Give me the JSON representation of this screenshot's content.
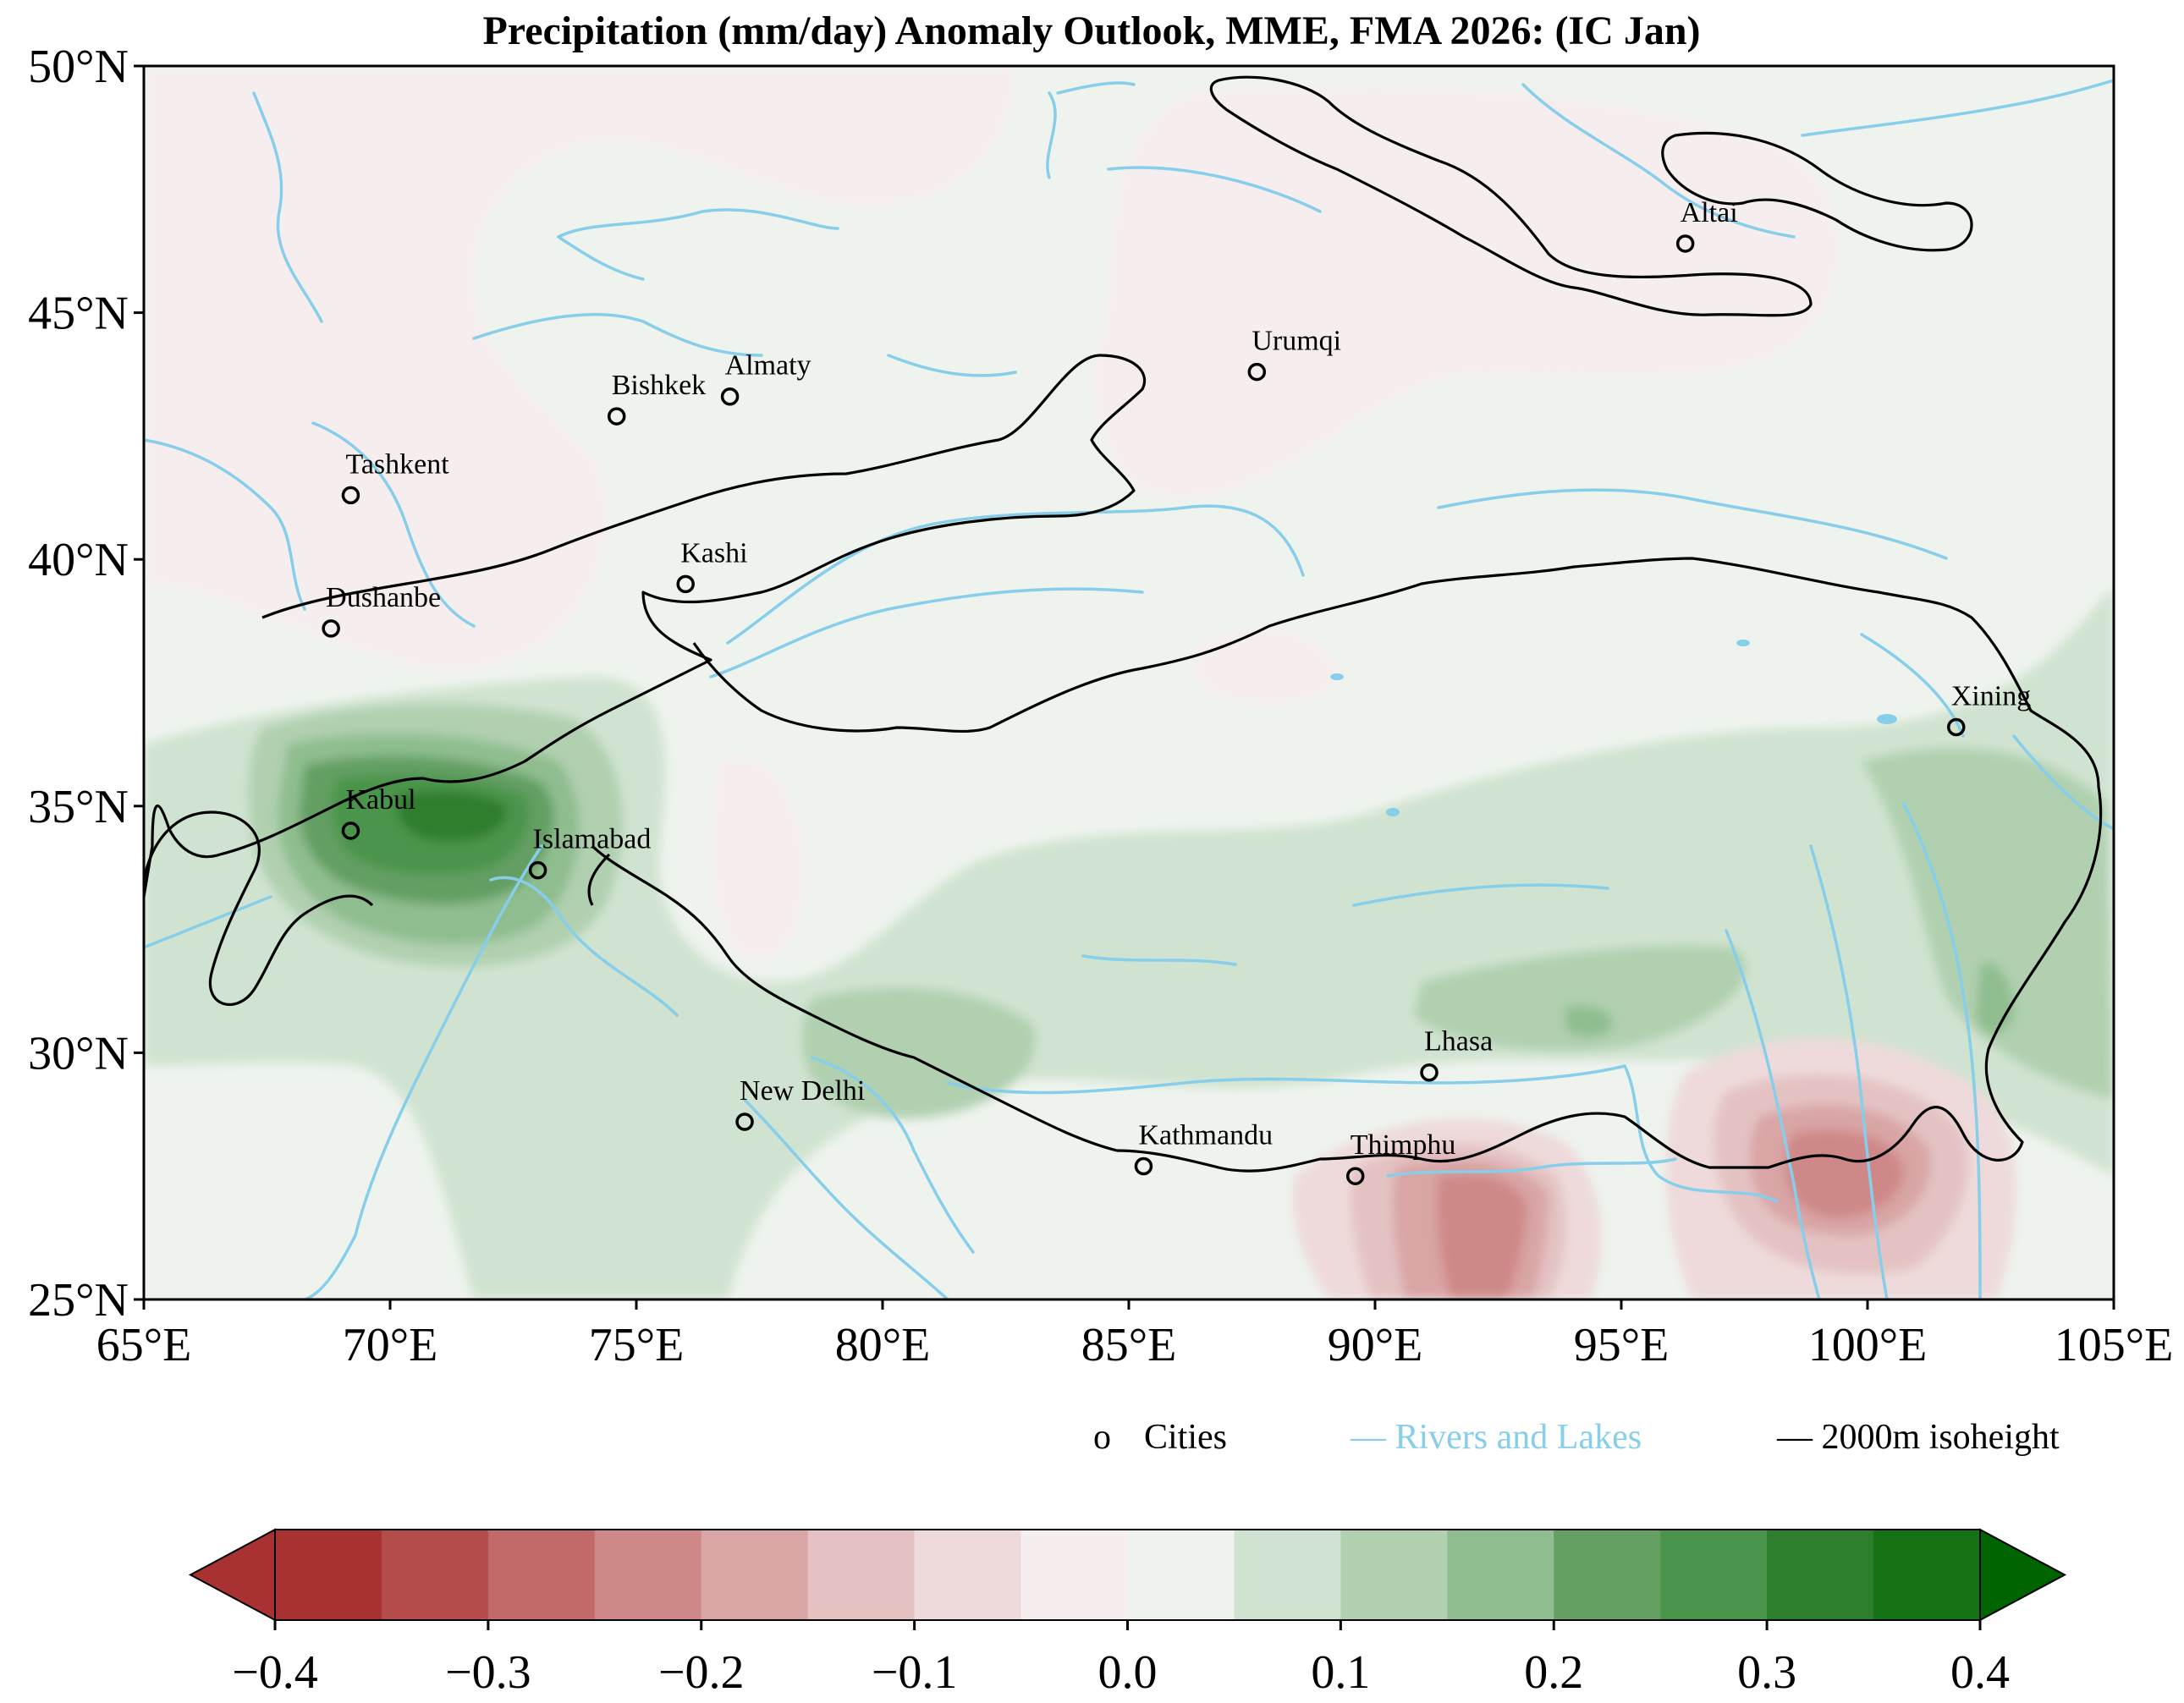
{
  "title": "Precipitation (mm/day) Anomaly Outlook, MME, FMA  2026:  (IC Jan)",
  "map": {
    "lon_range": [
      65,
      105
    ],
    "lat_range": [
      25,
      50
    ],
    "x_ticks": [
      {
        "lon": 65,
        "label": "65°E"
      },
      {
        "lon": 70,
        "label": "70°E"
      },
      {
        "lon": 75,
        "label": "75°E"
      },
      {
        "lon": 80,
        "label": "80°E"
      },
      {
        "lon": 85,
        "label": "85°E"
      },
      {
        "lon": 90,
        "label": "90°E"
      },
      {
        "lon": 95,
        "label": "95°E"
      },
      {
        "lon": 100,
        "label": "100°E"
      },
      {
        "lon": 105,
        "label": "105°E"
      }
    ],
    "y_ticks": [
      {
        "lat": 25,
        "label": "25°N"
      },
      {
        "lat": 30,
        "label": "30°N"
      },
      {
        "lat": 35,
        "label": "35°N"
      },
      {
        "lat": 40,
        "label": "40°N"
      },
      {
        "lat": 45,
        "label": "45°N"
      },
      {
        "lat": 50,
        "label": "50°N"
      }
    ],
    "cities": [
      {
        "name": "Altai",
        "lon": 96.3,
        "lat": 46.4
      },
      {
        "name": "Urumqi",
        "lon": 87.6,
        "lat": 43.8
      },
      {
        "name": "Almaty",
        "lon": 76.9,
        "lat": 43.3
      },
      {
        "name": "Bishkek",
        "lon": 74.6,
        "lat": 42.9
      },
      {
        "name": "Tashkent",
        "lon": 69.2,
        "lat": 41.3
      },
      {
        "name": "Kashi",
        "lon": 76.0,
        "lat": 39.5
      },
      {
        "name": "Dushanbe",
        "lon": 68.8,
        "lat": 38.6
      },
      {
        "name": "Xining",
        "lon": 101.8,
        "lat": 36.6
      },
      {
        "name": "Kabul",
        "lon": 69.2,
        "lat": 34.5
      },
      {
        "name": "Islamabad",
        "lon": 73.0,
        "lat": 33.7
      },
      {
        "name": "Lhasa",
        "lon": 91.1,
        "lat": 29.6
      },
      {
        "name": "New Delhi",
        "lon": 77.2,
        "lat": 28.6
      },
      {
        "name": "Kathmandu",
        "lon": 85.3,
        "lat": 27.7
      },
      {
        "name": "Thimphu",
        "lon": 89.6,
        "lat": 27.5
      }
    ],
    "anomaly_features": [
      {
        "kind": "wet",
        "lon": 71.4,
        "lat": 34.7,
        "peak": 0.36,
        "note": "centre near Kabul–Islamabad"
      },
      {
        "kind": "wet",
        "lon": 80.5,
        "lat": 29.8,
        "peak": 0.12
      },
      {
        "kind": "wet",
        "lon": 94.6,
        "lat": 30.5,
        "peak": 0.12
      },
      {
        "kind": "wet",
        "lon": 102.5,
        "lat": 31.0,
        "peak": 0.12
      },
      {
        "kind": "dry",
        "lon": 92.4,
        "lat": 26.6,
        "peak": -0.22
      },
      {
        "kind": "dry",
        "lon": 99.8,
        "lat": 27.1,
        "peak": -0.22
      }
    ]
  },
  "legend": {
    "cities_marker": "o",
    "cities_label": "Cities",
    "rivers_label": "Rivers and Lakes",
    "isoheight_label": "2000m isoheight"
  },
  "colorbar": {
    "levels": [
      -0.4,
      -0.35,
      -0.3,
      -0.25,
      -0.2,
      -0.15,
      -0.1,
      -0.05,
      0.0,
      0.05,
      0.1,
      0.15,
      0.2,
      0.25,
      0.3,
      0.35,
      0.4
    ],
    "colors": [
      "#a83232",
      "#b54c4c",
      "#c26a6a",
      "#cf8888",
      "#d9a5a5",
      "#e4c2c2",
      "#eedada",
      "#f6eeee",
      "#eef3ee",
      "#d0e3d0",
      "#b0d0b0",
      "#8fbd8f",
      "#649f64",
      "#4b944b",
      "#2d7e2d",
      "#157215"
    ],
    "under_color": "#a83232",
    "over_color": "#006400",
    "tick_labels": [
      "−0.4",
      "−0.3",
      "−0.2",
      "−0.1",
      "0.0",
      "0.1",
      "0.2",
      "0.3",
      "0.4"
    ],
    "tick_values": [
      -0.4,
      -0.3,
      -0.2,
      -0.1,
      0.0,
      0.1,
      0.2,
      0.3,
      0.4
    ]
  },
  "colors": {
    "river": "#87ceeb",
    "isoheight": "#000000",
    "background_anomaly": "#eef3ee"
  }
}
